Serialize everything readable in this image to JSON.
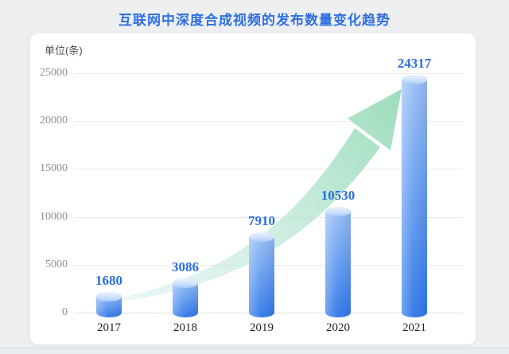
{
  "page": {
    "title": "互联网中深度合成视频的发布数量变化趋势"
  },
  "chart_data": {
    "type": "bar",
    "title": "互联网中深度合成视频的发布数量变化趋势",
    "unit_label": "单位(条)",
    "categories": [
      "2017",
      "2018",
      "2019",
      "2020",
      "2021"
    ],
    "values": [
      1680,
      3086,
      7910,
      10530,
      24317
    ],
    "value_labels": [
      "1680",
      "3086",
      "7910",
      "10530",
      "24317"
    ],
    "yticks": [
      0,
      5000,
      10000,
      15000,
      20000,
      25000
    ],
    "ylim": [
      0,
      25000
    ],
    "xlabel": "",
    "ylabel": "单位(条)",
    "grid": true,
    "legend": false,
    "bar_style": "3d-cylinder",
    "annotations": [
      {
        "type": "curved-arrow",
        "meaning": "upward growth trend",
        "color": "#9bdfbe"
      }
    ]
  },
  "colors": {
    "title_blue": "#2e6fe3",
    "value_label_blue": "#2b6fdd",
    "bar_gradient_bottom": "#2f78e8",
    "bar_top_ellipse": "#c9dffb",
    "arrow_green_head": "#96dbb7",
    "arrow_tail_pale": "#d7eef8",
    "card_bg": "#ffffff",
    "page_bg": "#edeff1",
    "gridline": "#e9ebef",
    "axis_text": "#8b8f96",
    "year_text": "#1f2329"
  }
}
